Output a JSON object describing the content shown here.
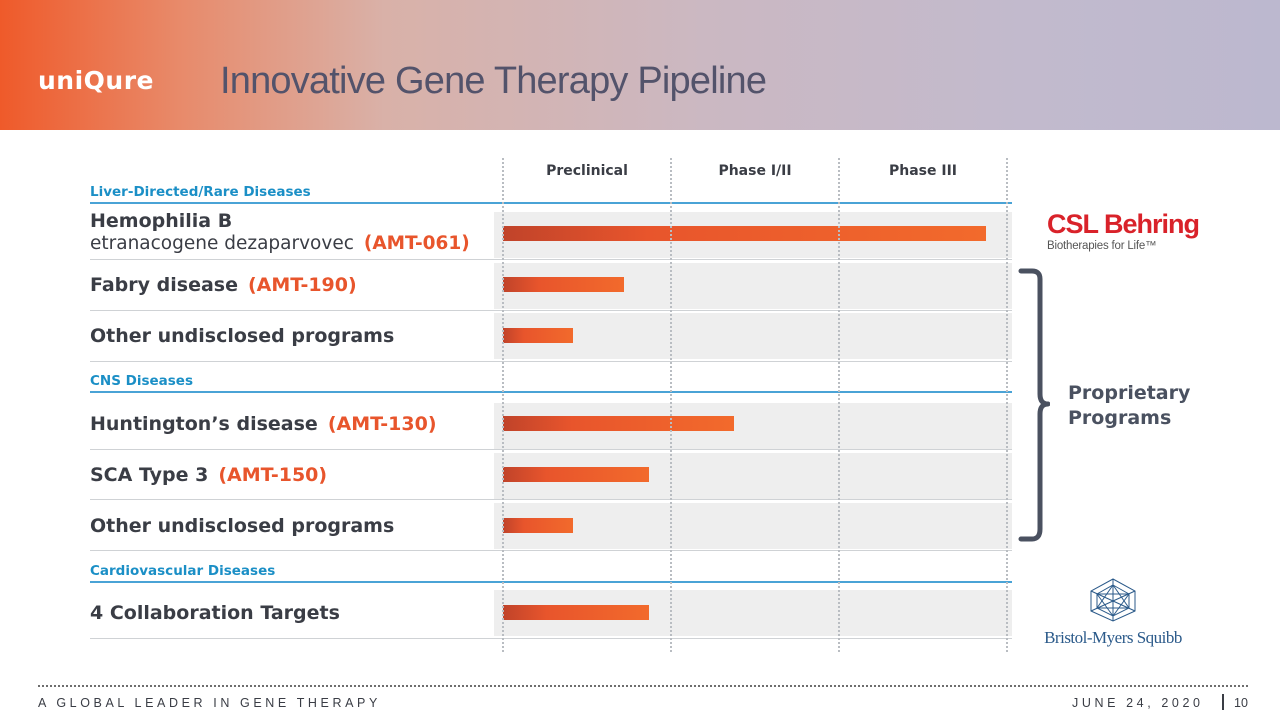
{
  "header": {
    "brand": "uniQure",
    "title": "Innovative Gene Therapy Pipeline"
  },
  "phases": [
    "Preclinical",
    "Phase I/II",
    "Phase III"
  ],
  "categories": [
    {
      "name": "Liver-Directed/Rare Diseases",
      "programs": [
        {
          "name": "Hemophilia B",
          "subtitle": "etranacogene dezaparvovec",
          "code": "(AMT-061)",
          "progress": 0.96
        },
        {
          "name": "Fabry disease",
          "code": "(AMT-190)",
          "progress": 0.24
        },
        {
          "name": "Other undisclosed programs",
          "code": "",
          "progress": 0.14
        }
      ]
    },
    {
      "name": "CNS Diseases",
      "programs": [
        {
          "name": "Huntington’s disease",
          "code": "(AMT-130)",
          "progress": 0.46
        },
        {
          "name": "SCA Type 3",
          "code": "(AMT-150)",
          "progress": 0.29
        },
        {
          "name": "Other undisclosed programs",
          "code": "",
          "progress": 0.14
        }
      ]
    },
    {
      "name": "Cardiovascular Diseases",
      "programs": [
        {
          "name": "4 Collaboration Targets",
          "code": "",
          "progress": 0.29
        }
      ]
    }
  ],
  "partners": {
    "csl_name": "CSL Behring",
    "csl_tagline": "Biotherapies for Life™",
    "proprietary_label_line1": "Proprietary",
    "proprietary_label_line2": "Programs",
    "bms_name": "Bristol-Myers Squibb"
  },
  "colors": {
    "accent_orange": "#e8552c",
    "category_blue": "#1b8fc6",
    "csl_red": "#d9222a",
    "bms_blue": "#2b5a8a"
  },
  "footer": {
    "tagline": "A GLOBAL LEADER IN GENE THERAPY",
    "date": "JUNE 24, 2020",
    "page": "10"
  }
}
